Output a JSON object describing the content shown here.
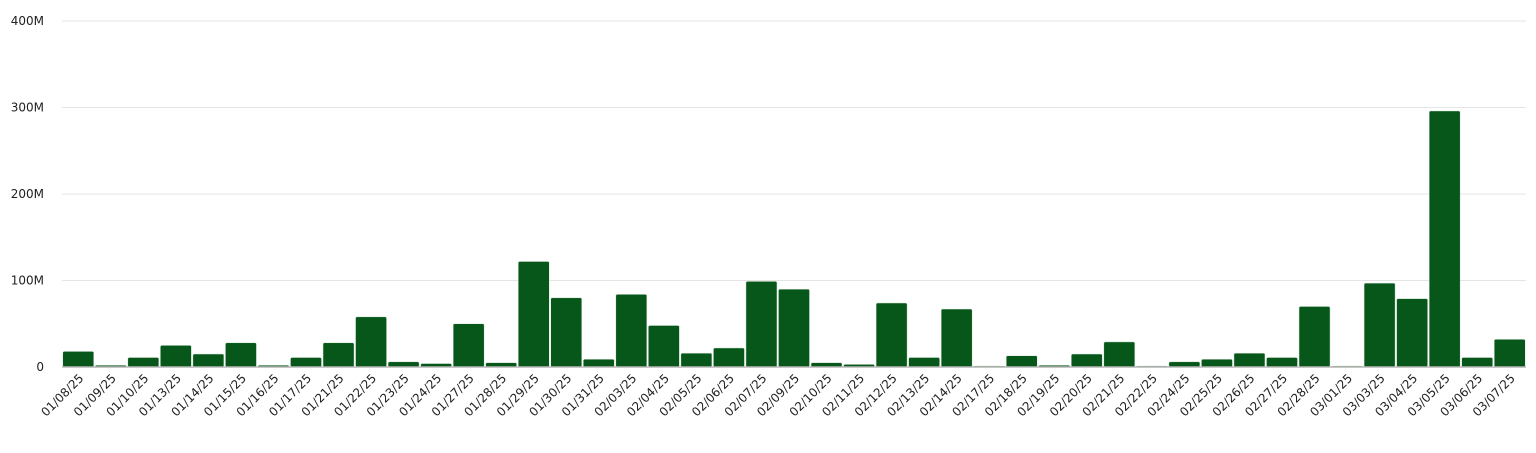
{
  "chart_data": {
    "type": "bar",
    "categories": [
      "01/08/25",
      "01/09/25",
      "01/10/25",
      "01/13/25",
      "01/14/25",
      "01/15/25",
      "01/16/25",
      "01/17/25",
      "01/21/25",
      "01/22/25",
      "01/23/25",
      "01/24/25",
      "01/27/25",
      "01/28/25",
      "01/29/25",
      "01/30/25",
      "01/31/25",
      "02/03/25",
      "02/04/25",
      "02/05/25",
      "02/06/25",
      "02/07/25",
      "02/09/25",
      "02/10/25",
      "02/11/25",
      "02/12/25",
      "02/13/25",
      "02/14/25",
      "02/17/25",
      "02/18/25",
      "02/19/25",
      "02/20/25",
      "02/21/25",
      "02/22/25",
      "02/24/25",
      "02/25/25",
      "02/26/25",
      "02/27/25",
      "02/28/25",
      "03/01/25",
      "03/03/25",
      "03/04/25",
      "03/05/25",
      "03/06/25",
      "03/07/25"
    ],
    "values": [
      18,
      2,
      11,
      25,
      15,
      28,
      2,
      11,
      28,
      58,
      6,
      4,
      50,
      5,
      122,
      80,
      9,
      84,
      48,
      16,
      22,
      99,
      90,
      5,
      3,
      74,
      11,
      67,
      1,
      13,
      2,
      15,
      29,
      1,
      6,
      9,
      16,
      11,
      70,
      1,
      97,
      79,
      296,
      11,
      32
    ],
    "value_unit": "M",
    "ylim": [
      0,
      400
    ],
    "yticks": [
      0,
      100,
      200,
      300,
      400
    ],
    "ytick_labels": [
      "0",
      "100M",
      "200M",
      "300M",
      "400M"
    ],
    "title": "",
    "xlabel": "",
    "ylabel": "",
    "grid": true,
    "colors": {
      "bar": "#07571a",
      "grid": "#e4e4e4",
      "axis": "#b5b5b5",
      "text": "#222222"
    }
  }
}
